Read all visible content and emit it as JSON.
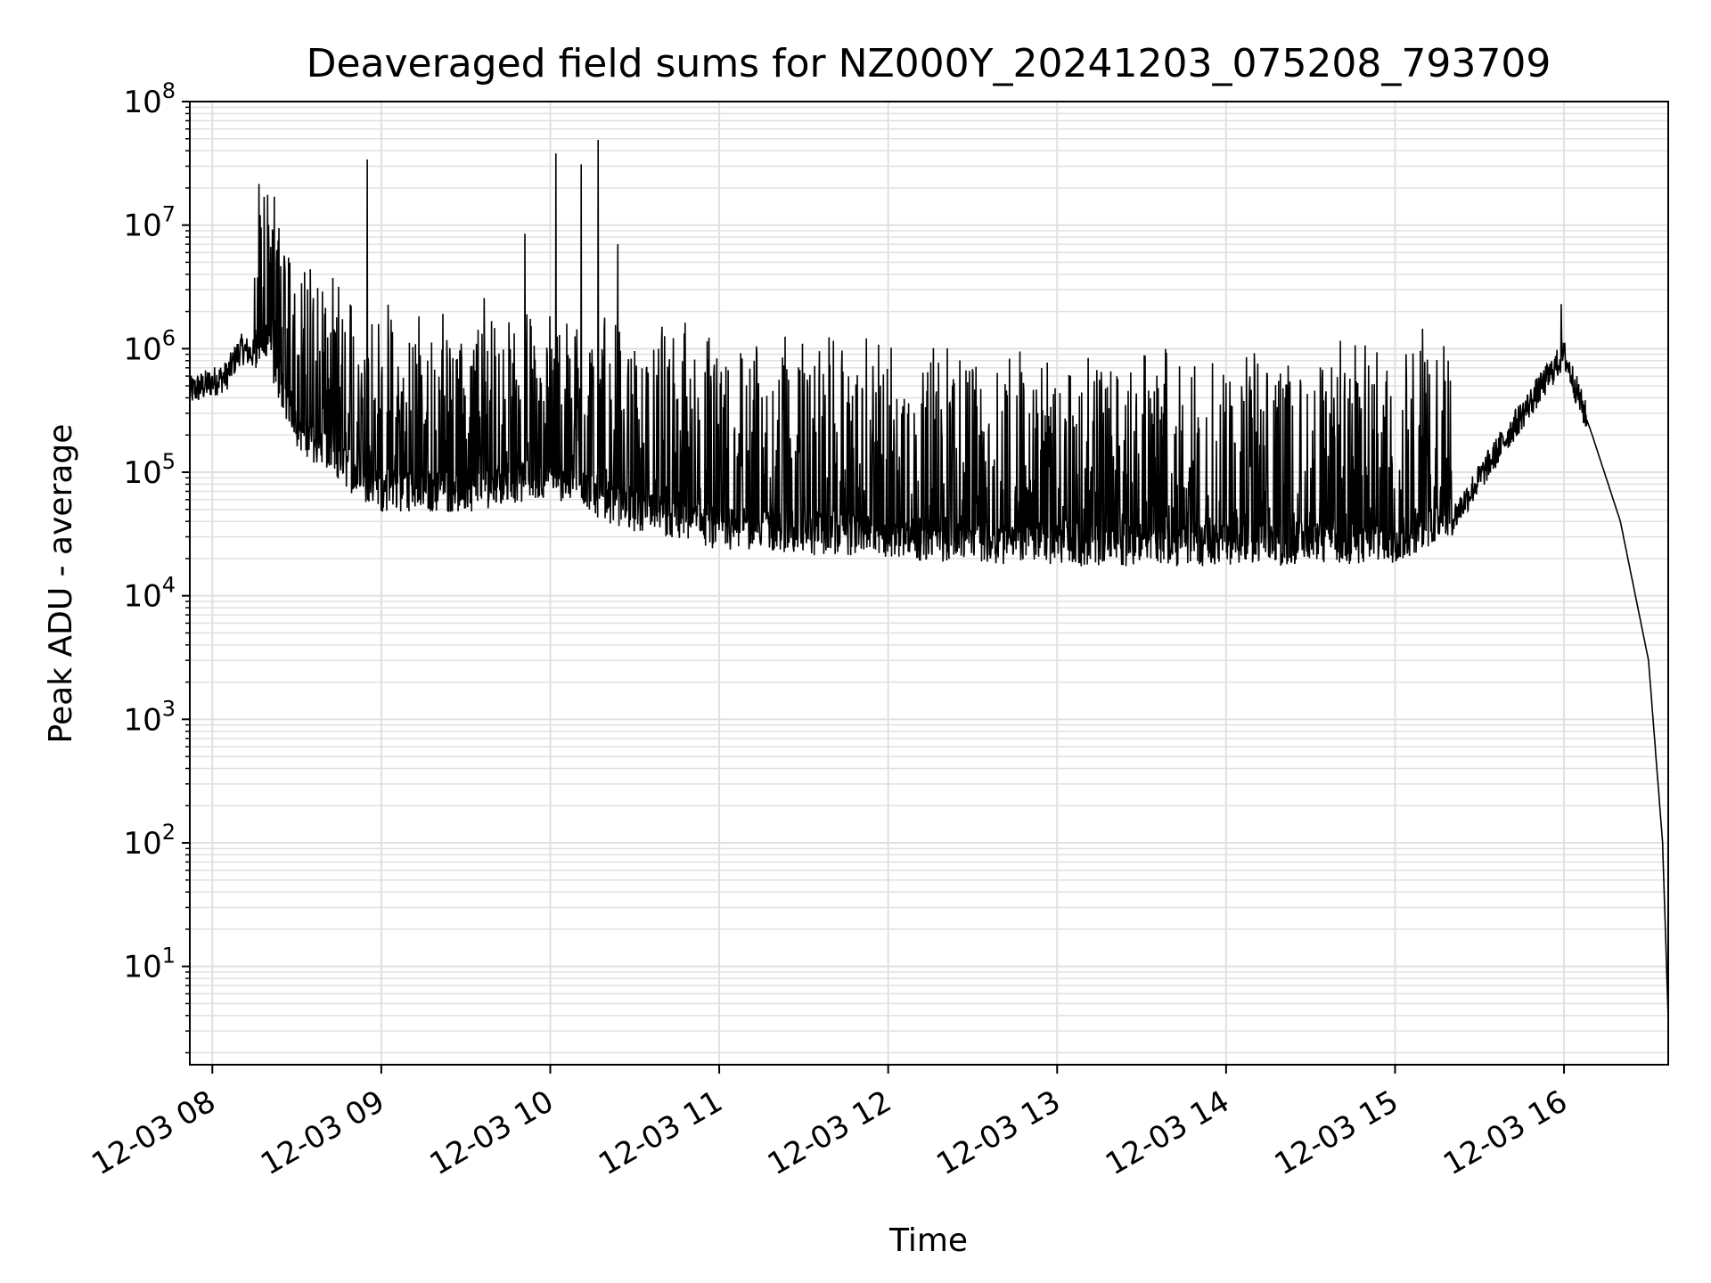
{
  "chart_data": {
    "type": "line",
    "title": "Deaveraged field sums for NZ000Y_20241203_075208_793709",
    "xlabel": "Time",
    "ylabel": "Peak ADU - average",
    "yscale": "log",
    "ylim": [
      1.6,
      100000000
    ],
    "xlim": [
      "2024-12-03 07:52:00",
      "2024-12-03 16:37:00"
    ],
    "grid": true,
    "legend": "none",
    "colors": {
      "line": "#000000",
      "grid": "#e0e0e0",
      "background": "#ffffff"
    },
    "y_ticks": [
      {
        "base": "10",
        "exp": "1"
      },
      {
        "base": "10",
        "exp": "2"
      },
      {
        "base": "10",
        "exp": "3"
      },
      {
        "base": "10",
        "exp": "4"
      },
      {
        "base": "10",
        "exp": "5"
      },
      {
        "base": "10",
        "exp": "6"
      },
      {
        "base": "10",
        "exp": "7"
      },
      {
        "base": "10",
        "exp": "8"
      }
    ],
    "x_ticks": [
      "12-03 08",
      "12-03 09",
      "12-03 10",
      "12-03 11",
      "12-03 12",
      "12-03 13",
      "12-03 14",
      "12-03 15",
      "12-03 16"
    ],
    "series": [
      {
        "line_width": 1,
        "baseline_envelope": [
          [
            "2024-12-03 07:52:00",
            450000
          ],
          [
            "2024-12-03 08:05:00",
            600000
          ],
          [
            "2024-12-03 08:10:00",
            1000000
          ],
          [
            "2024-12-03 08:20:00",
            800000
          ],
          [
            "2024-12-03 08:30:00",
            200000
          ],
          [
            "2024-12-03 08:45:00",
            100000
          ],
          [
            "2024-12-03 09:00:00",
            60000
          ],
          [
            "2024-12-03 09:30:00",
            60000
          ],
          [
            "2024-12-03 10:00:00",
            80000
          ],
          [
            "2024-12-03 10:30:00",
            40000
          ],
          [
            "2024-12-03 11:00:00",
            30000
          ],
          [
            "2024-12-03 12:00:00",
            25000
          ],
          [
            "2024-12-03 13:00:00",
            22000
          ],
          [
            "2024-12-03 14:00:00",
            22000
          ],
          [
            "2024-12-03 15:00:00",
            23000
          ],
          [
            "2024-12-03 15:20:00",
            40000
          ],
          [
            "2024-12-03 15:40:00",
            200000
          ],
          [
            "2024-12-03 16:00:00",
            900000
          ],
          [
            "2024-12-03 16:10:00",
            200000
          ],
          [
            "2024-12-03 16:20:00",
            40000
          ],
          [
            "2024-12-03 16:30:00",
            3000
          ],
          [
            "2024-12-03 16:35:00",
            100
          ],
          [
            "2024-12-03 16:37:00",
            3.8
          ]
        ],
        "spikes": [
          [
            "2024-12-03 08:22:00",
            17000000
          ],
          [
            "2024-12-03 08:55:00",
            34000000
          ],
          [
            "2024-12-03 09:51:00",
            8500000
          ],
          [
            "2024-12-03 10:02:00",
            38000000
          ],
          [
            "2024-12-03 10:11:00",
            31000000
          ],
          [
            "2024-12-03 10:17:00",
            49000000
          ],
          [
            "2024-12-03 10:24:00",
            7000000
          ],
          [
            "2024-12-03 15:59:00",
            2300000
          ]
        ]
      }
    ]
  }
}
